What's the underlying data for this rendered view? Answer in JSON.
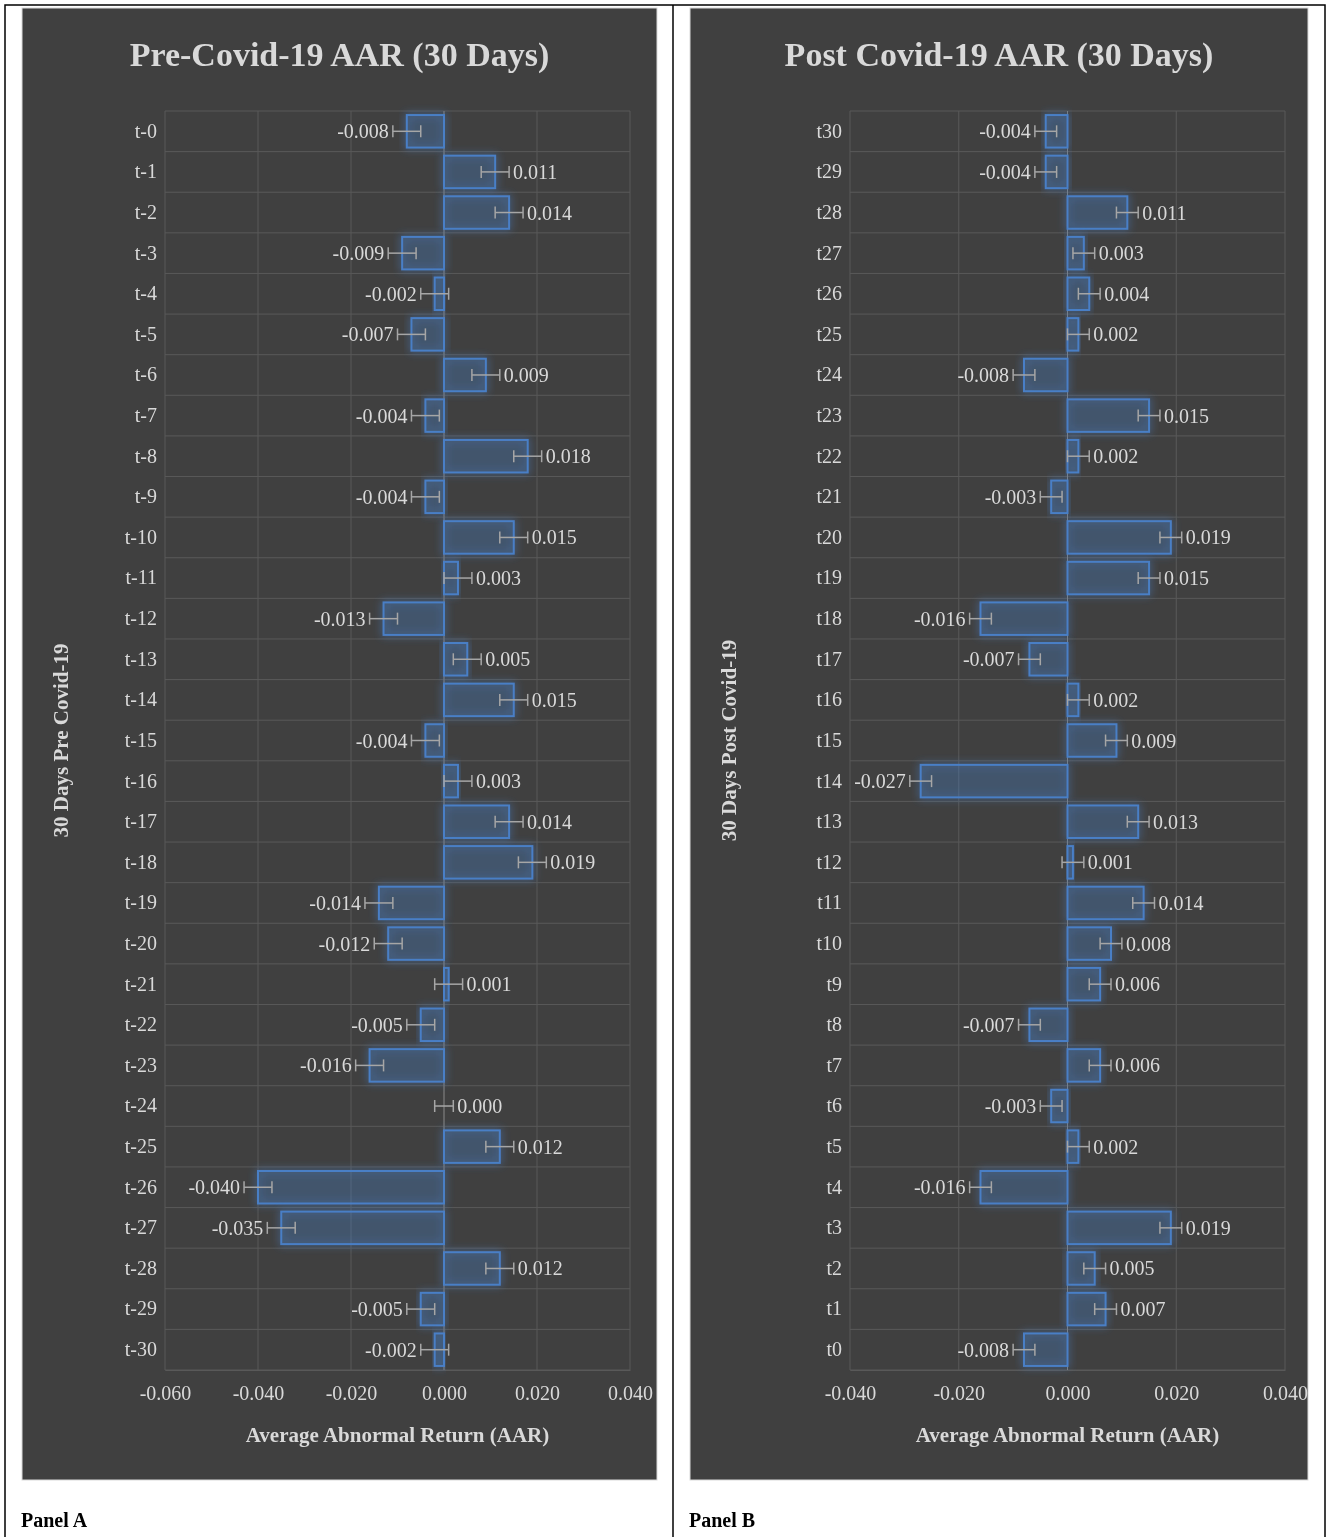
{
  "chart_data": [
    {
      "type": "bar",
      "orientation": "horizontal",
      "title": "Pre-Covid-19 AAR (30 Days)",
      "xlabel": "Average Abnormal Return (AAR)",
      "ylabel": "30 Days Pre Covid-19",
      "categories": [
        "t-0",
        "t-1",
        "t-2",
        "t-3",
        "t-4",
        "t-5",
        "t-6",
        "t-7",
        "t-8",
        "t-9",
        "t-10",
        "t-11",
        "t-12",
        "t-13",
        "t-14",
        "t-15",
        "t-16",
        "t-17",
        "t-18",
        "t-19",
        "t-20",
        "t-21",
        "t-22",
        "t-23",
        "t-24",
        "t-25",
        "t-26",
        "t-27",
        "t-28",
        "t-29",
        "t-30"
      ],
      "values": [
        -0.008,
        0.011,
        0.014,
        -0.009,
        -0.002,
        -0.007,
        0.009,
        -0.004,
        0.018,
        -0.004,
        0.015,
        0.003,
        -0.013,
        0.005,
        0.015,
        -0.004,
        0.003,
        0.014,
        0.019,
        -0.014,
        -0.012,
        0.001,
        -0.005,
        -0.016,
        0.0,
        0.012,
        -0.04,
        -0.035,
        0.012,
        -0.005,
        -0.002
      ],
      "value_labels": [
        "-0.008",
        "0.011",
        "0.014",
        "-0.009",
        "-0.002",
        "-0.007",
        "0.009",
        "-0.004",
        "0.018",
        "-0.004",
        "0.015",
        "0.003",
        "-0.013",
        "0.005",
        "0.015",
        "-0.004",
        "0.003",
        "0.014",
        "0.019",
        "-0.014",
        "-0.012",
        "0.001",
        "-0.005",
        "-0.016",
        "0.000",
        "0.012",
        "-0.040",
        "-0.035",
        "0.012",
        "-0.005",
        "-0.002"
      ],
      "errors": [
        0.003,
        0.003,
        0.003,
        0.003,
        0.003,
        0.003,
        0.003,
        0.003,
        0.003,
        0.003,
        0.003,
        0.003,
        0.003,
        0.003,
        0.003,
        0.003,
        0.003,
        0.003,
        0.003,
        0.003,
        0.003,
        0.003,
        0.003,
        0.003,
        0.002,
        0.003,
        0.003,
        0.003,
        0.003,
        0.003,
        0.003
      ],
      "color": "#4a7fc6",
      "xlim": [
        -0.06,
        0.04
      ],
      "xticks": [
        {
          "value": -0.06,
          "label": "-0.060"
        },
        {
          "value": -0.04,
          "label": "-0.040"
        },
        {
          "value": -0.02,
          "label": "-0.020"
        },
        {
          "value": 0,
          "label": "0.000"
        },
        {
          "value": 0.02,
          "label": "0.020"
        },
        {
          "value": 0.04,
          "label": "0.040"
        }
      ],
      "grid": true,
      "annotations": [
        "Panel A"
      ]
    },
    {
      "type": "bar",
      "orientation": "horizontal",
      "title": "Post Covid-19 AAR (30 Days)",
      "xlabel": "Average Abnormal Return (AAR)",
      "ylabel": "30 Days Post Covid-19",
      "categories": [
        "t30",
        "t29",
        "t28",
        "t27",
        "t26",
        "t25",
        "t24",
        "t23",
        "t22",
        "t21",
        "t20",
        "t19",
        "t18",
        "t17",
        "t16",
        "t15",
        "t14",
        "t13",
        "t12",
        "t11",
        "t10",
        "t9",
        "t8",
        "t7",
        "t6",
        "t5",
        "t4",
        "t3",
        "t2",
        "t1",
        "t0"
      ],
      "values": [
        -0.004,
        -0.004,
        0.011,
        0.003,
        0.004,
        0.002,
        -0.008,
        0.015,
        0.002,
        -0.003,
        0.019,
        0.015,
        -0.016,
        -0.007,
        0.002,
        0.009,
        -0.027,
        0.013,
        0.001,
        0.014,
        0.008,
        0.006,
        -0.007,
        0.006,
        -0.003,
        0.002,
        -0.016,
        0.019,
        0.005,
        0.007,
        -0.008
      ],
      "value_labels": [
        "-0.004",
        "-0.004",
        "0.011",
        "0.003",
        "0.004",
        "0.002",
        "-0.008",
        "0.015",
        "0.002",
        "-0.003",
        "0.019",
        "0.015",
        "-0.016",
        "-0.007",
        "0.002",
        "0.009",
        "-0.027",
        "0.013",
        "0.001",
        "0.014",
        "0.008",
        "0.006",
        "-0.007",
        "0.006",
        "-0.003",
        "0.002",
        "-0.016",
        "0.019",
        "0.005",
        "0.007",
        "-0.008"
      ],
      "errors": [
        0.002,
        0.002,
        0.002,
        0.002,
        0.002,
        0.002,
        0.002,
        0.002,
        0.002,
        0.002,
        0.002,
        0.002,
        0.002,
        0.002,
        0.002,
        0.002,
        0.002,
        0.002,
        0.002,
        0.002,
        0.002,
        0.002,
        0.002,
        0.002,
        0.002,
        0.002,
        0.002,
        0.002,
        0.002,
        0.002,
        0.002
      ],
      "color": "#4a7fc6",
      "xlim": [
        -0.04,
        0.04
      ],
      "xticks": [
        {
          "value": -0.04,
          "label": "-0.040"
        },
        {
          "value": -0.02,
          "label": "-0.020"
        },
        {
          "value": 0,
          "label": "0.000"
        },
        {
          "value": 0.02,
          "label": "0.020"
        },
        {
          "value": 0.04,
          "label": "0.040"
        }
      ],
      "grid": true,
      "annotations": [
        "Panel B"
      ]
    }
  ]
}
